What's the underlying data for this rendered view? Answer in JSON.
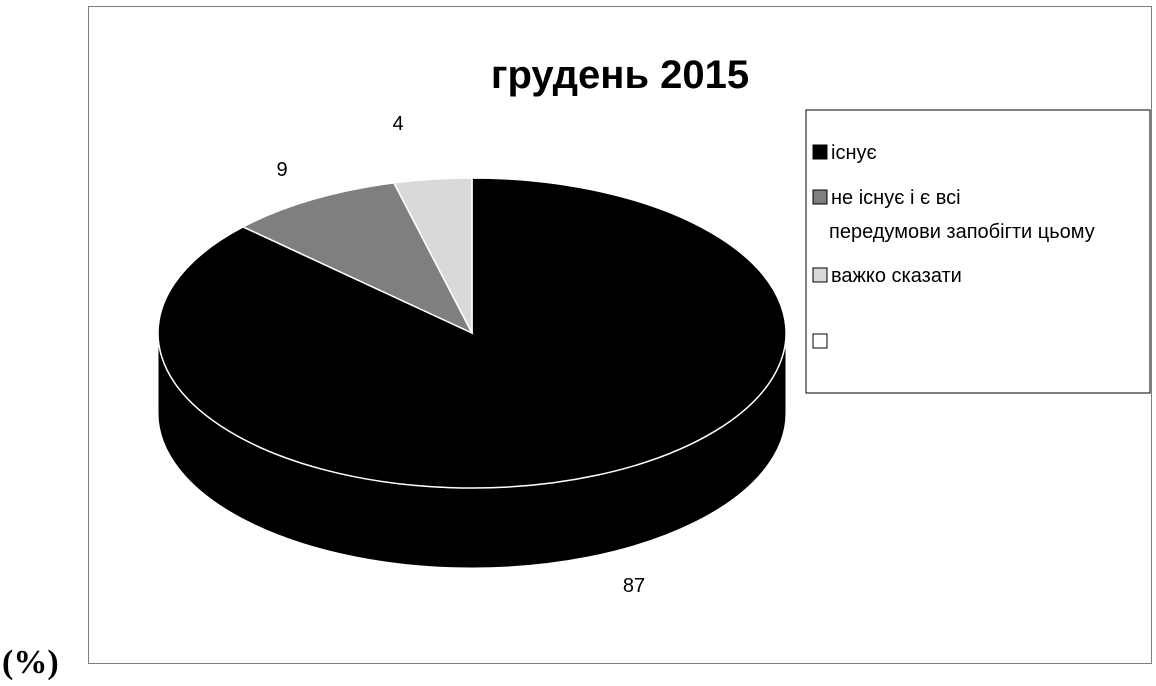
{
  "unit_label": "(%)",
  "chart_data": {
    "type": "pie",
    "title": "грудень 2015",
    "categories": [
      "існує",
      "не існує і є всі передумови запобігти цьому",
      "важко сказати",
      ""
    ],
    "values": [
      87,
      9,
      4,
      0
    ],
    "colors": [
      "#000000",
      "#7f7f7f",
      "#d9d9d9",
      "#ffffff"
    ],
    "legend_position": "right",
    "style": "3d"
  }
}
